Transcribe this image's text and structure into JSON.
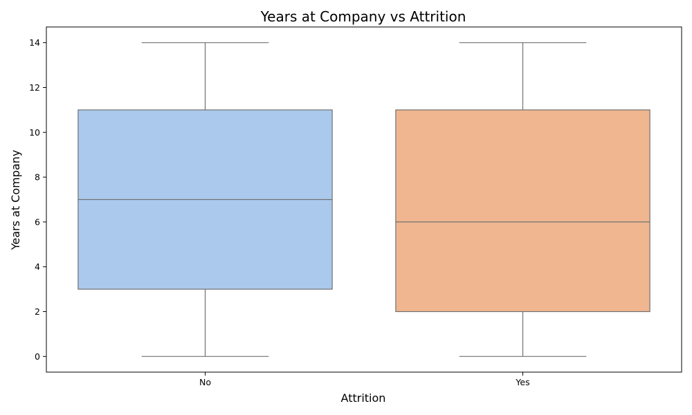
{
  "chart_data": {
    "type": "box",
    "title": "Years at Company vs Attrition",
    "xlabel": "Attrition",
    "ylabel": "Years at Company",
    "categories": [
      "No",
      "Yes"
    ],
    "boxes": [
      {
        "category": "No",
        "min": 0,
        "q1": 3,
        "median": 7,
        "q3": 11,
        "max": 14,
        "color": "#abc9ec"
      },
      {
        "category": "Yes",
        "min": 0,
        "q1": 2,
        "median": 6,
        "q3": 11,
        "max": 14,
        "color": "#f0b690"
      }
    ],
    "ylim": [
      -0.7,
      14.7
    ],
    "yticks": [
      0,
      2,
      4,
      6,
      8,
      10,
      12,
      14
    ],
    "grid": false,
    "line_color": "#707070"
  }
}
